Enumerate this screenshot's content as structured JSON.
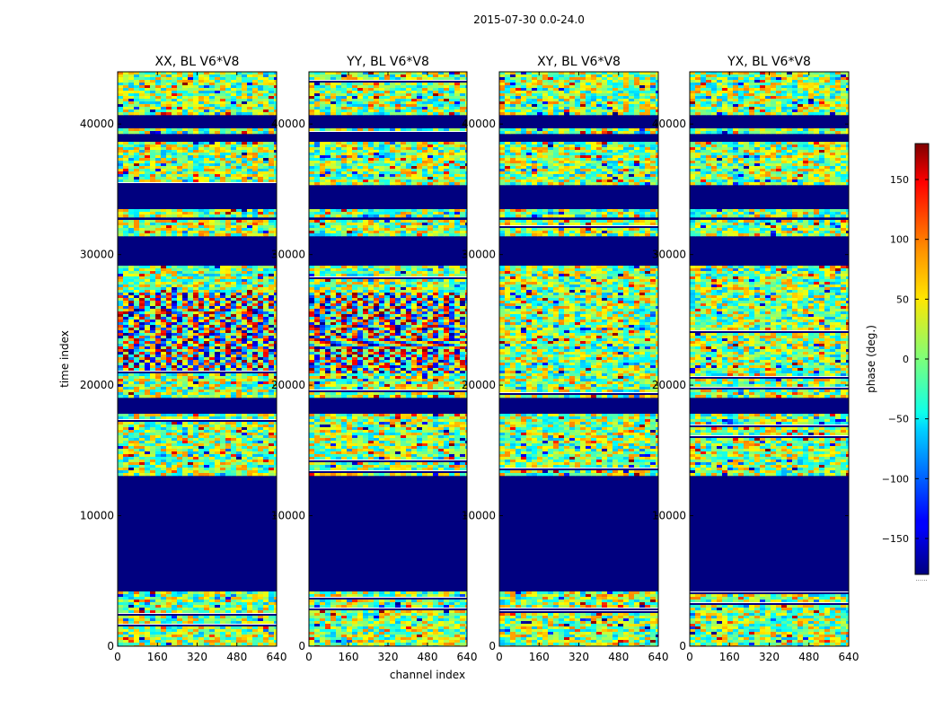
{
  "chart_data": {
    "type": "heatmap",
    "suptitle": "2015-07-30 0.0-24.0",
    "xlabel": "channel index",
    "ylabel": "time index",
    "xlim": [
      0,
      640
    ],
    "ylim": [
      0,
      44000
    ],
    "xticks": [
      0,
      160,
      320,
      480,
      640
    ],
    "yticks": [
      0,
      10000,
      20000,
      30000,
      40000
    ],
    "panels": [
      {
        "title": "XX, BL V6*V8",
        "pol": "XX"
      },
      {
        "title": "YY, BL V6*V8",
        "pol": "YY"
      },
      {
        "title": "XY, BL V6*V8",
        "pol": "XY"
      },
      {
        "title": "YX, BL V6*V8",
        "pol": "YX"
      }
    ],
    "colorbar": {
      "label": "phase (deg.)",
      "range": [
        -180,
        180
      ],
      "ticks": [
        -150,
        -100,
        -50,
        0,
        50,
        100,
        150
      ],
      "tick_labels": [
        "−150",
        "−100",
        "−50",
        "0",
        "50",
        "100",
        "150"
      ],
      "colormap": "jet",
      "below_label": "......"
    },
    "flagged_time_ranges": [
      [
        4100,
        13100
      ],
      [
        17900,
        19100
      ],
      [
        29100,
        31500
      ],
      [
        32600,
        32800
      ],
      [
        33400,
        35300
      ],
      [
        38600,
        39300
      ],
      [
        39600,
        40600
      ]
    ],
    "colors": {
      "flagged": "#00007f",
      "axes": "#000000",
      "background": "#ffffff"
    }
  }
}
